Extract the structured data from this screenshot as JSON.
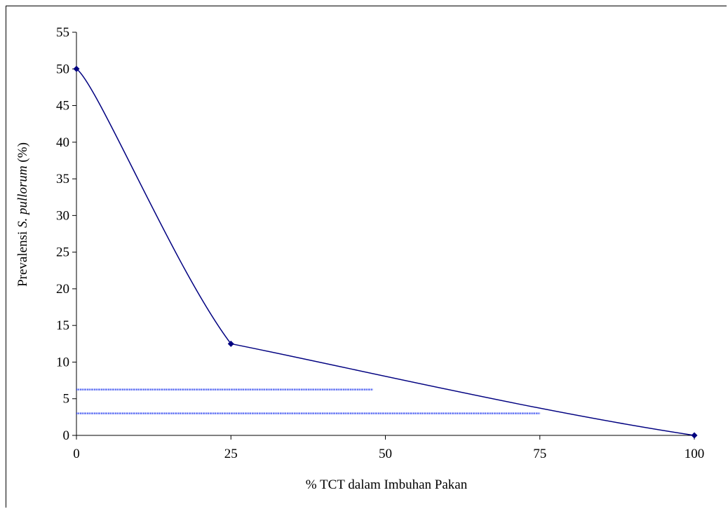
{
  "chart_data": {
    "type": "line",
    "title": "",
    "xlabel": "% TCT dalam Imbuhan Pakan",
    "ylabel_prefix": "Prevalensi ",
    "ylabel_italic": "S. pullorum",
    "ylabel_suffix": " (%)",
    "xlim": [
      0,
      100
    ],
    "ylim": [
      0,
      55
    ],
    "xticks": [
      0,
      25,
      50,
      75,
      100
    ],
    "yticks": [
      0,
      5,
      10,
      15,
      20,
      25,
      30,
      35,
      40,
      45,
      50,
      55
    ],
    "grid": false,
    "series": [
      {
        "color": "#000080",
        "points": [
          [
            0,
            50
          ],
          [
            25,
            12.5
          ],
          [
            100,
            0
          ]
        ]
      }
    ],
    "reference_lines": [
      {
        "y": 6.25,
        "x_end": 48,
        "color": "#3a4ff0"
      },
      {
        "y": 3.0,
        "x_end": 75,
        "color": "#3a4ff0"
      }
    ]
  }
}
